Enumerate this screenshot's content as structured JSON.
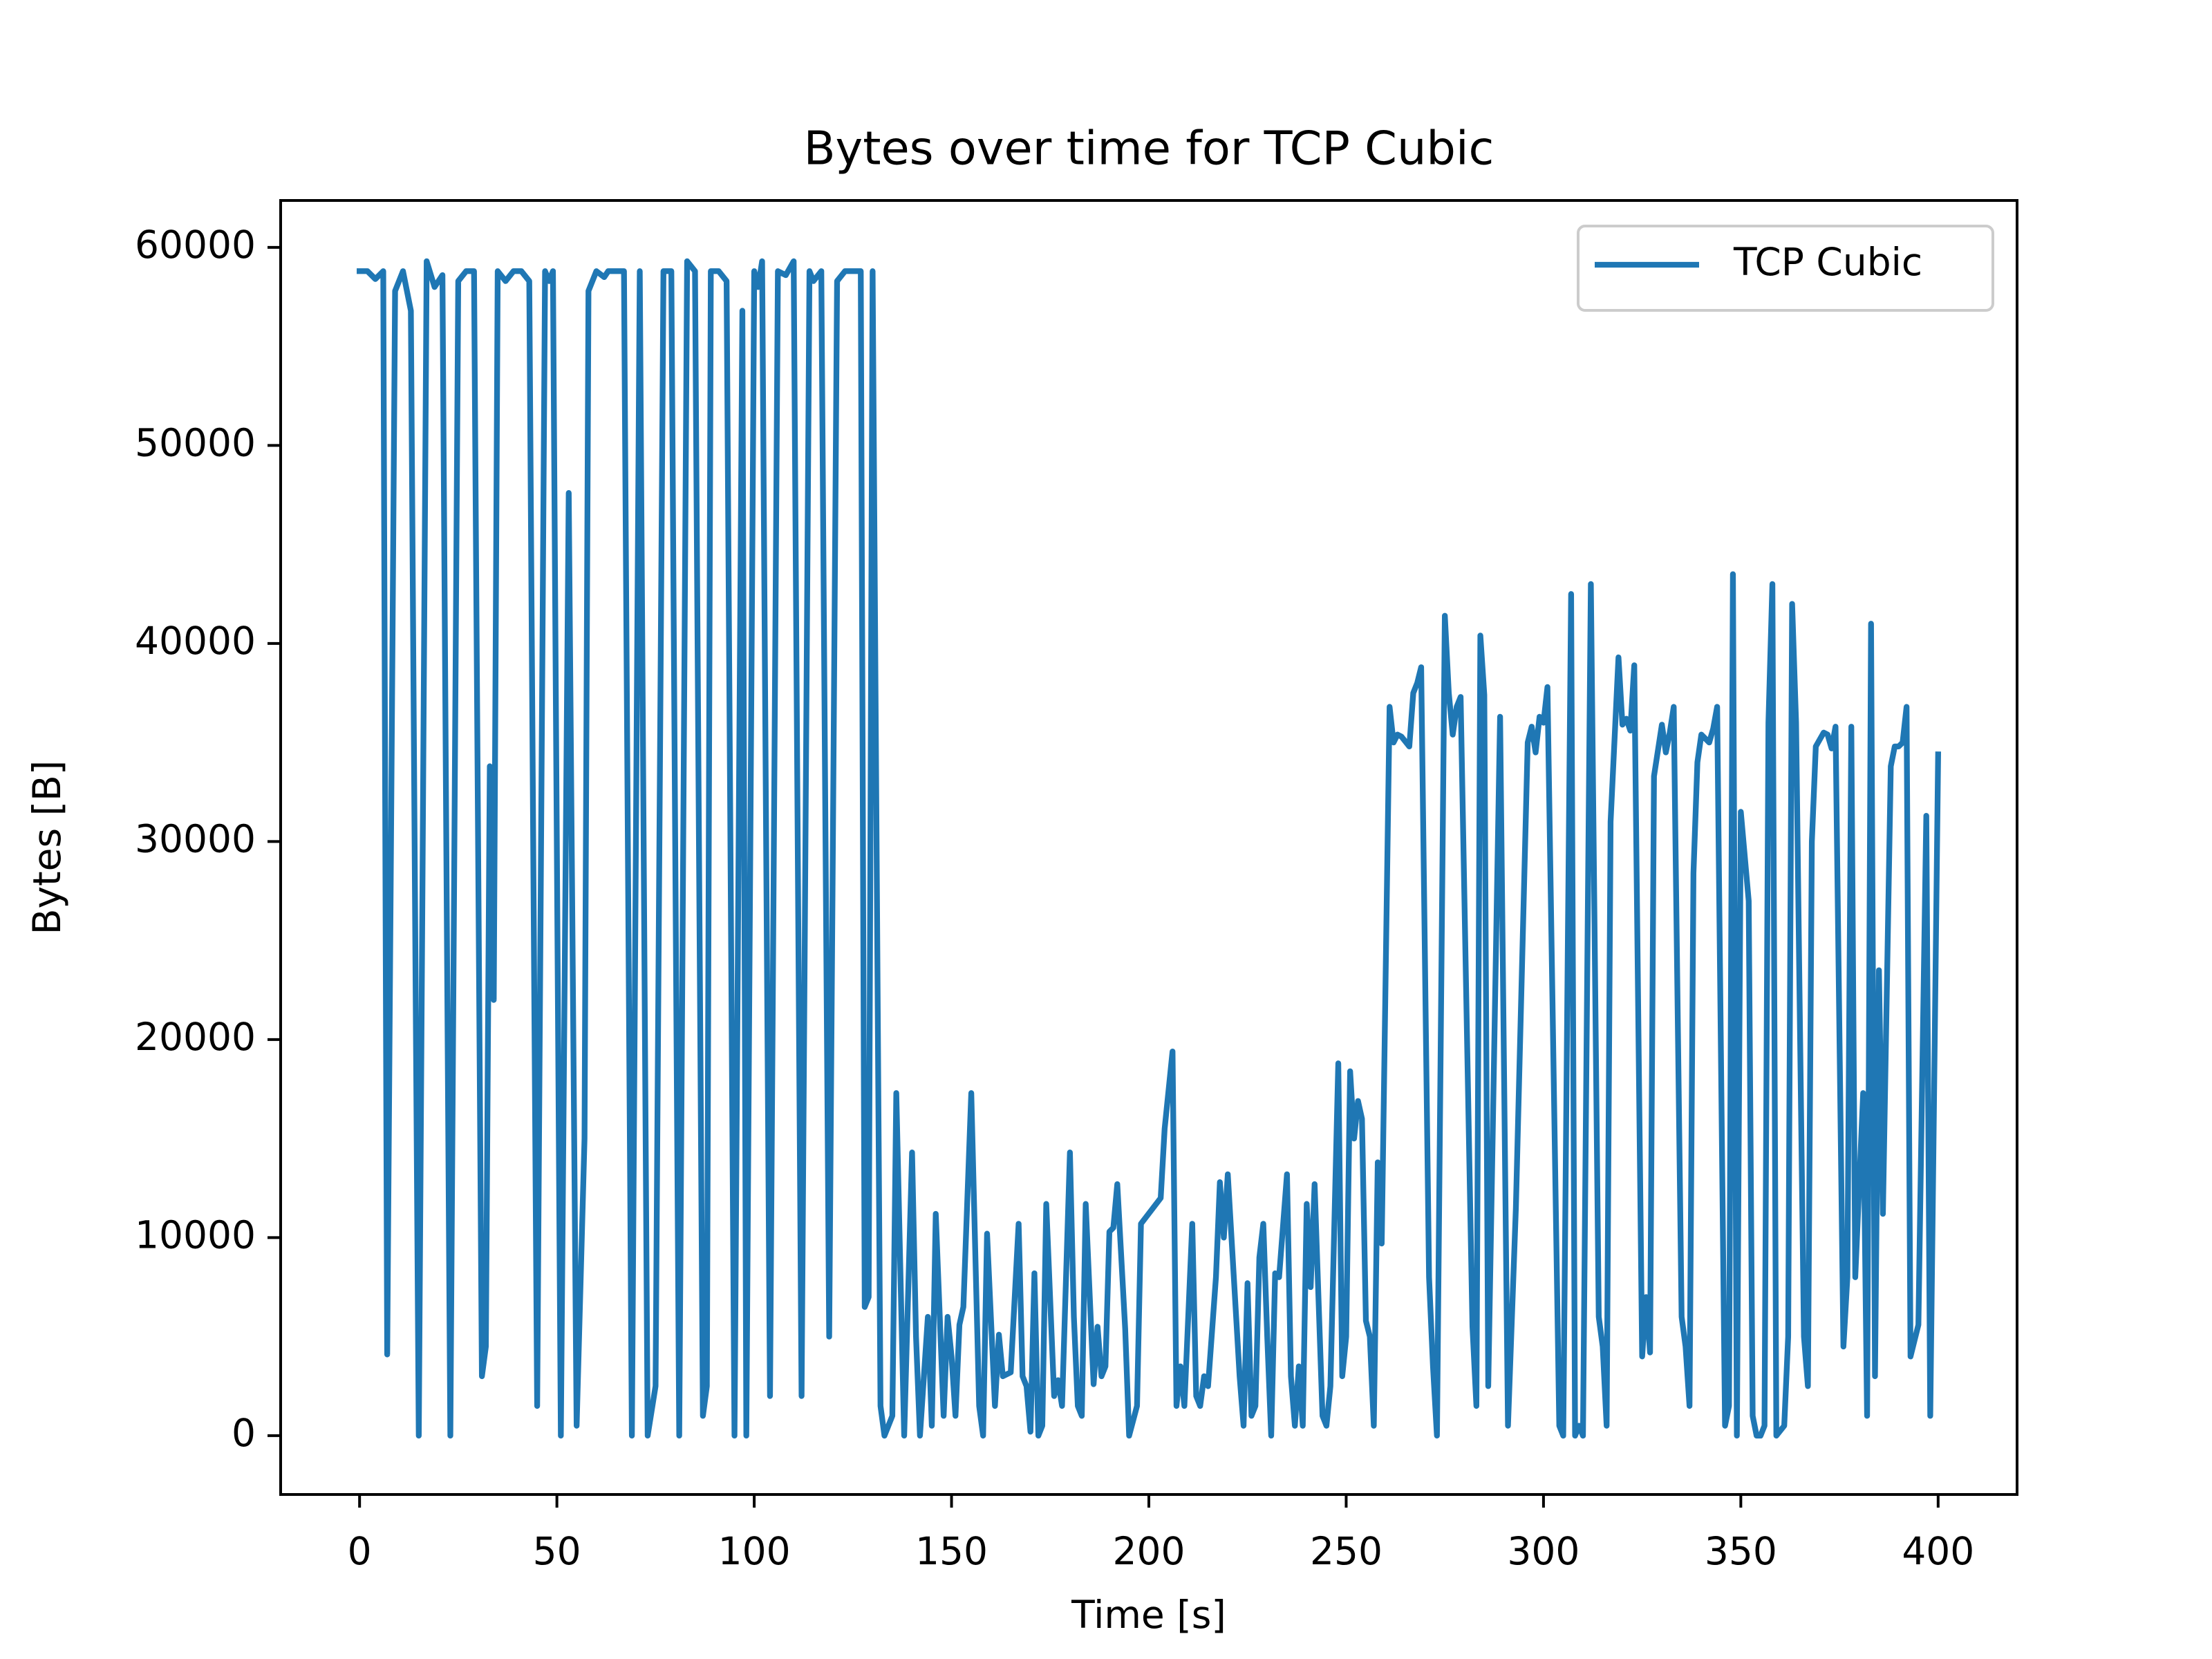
{
  "chart_data": {
    "type": "line",
    "title": "Bytes over time for TCP Cubic",
    "xlabel": "Time [s]",
    "ylabel": "Bytes [B]",
    "xlim": [
      -20,
      420
    ],
    "ylim": [
      -2970,
      62370
    ],
    "xticks": [
      0,
      50,
      100,
      150,
      200,
      250,
      300,
      350,
      400
    ],
    "yticks": [
      0,
      10000,
      20000,
      30000,
      40000,
      50000,
      60000
    ],
    "legend": "upper right",
    "x": [
      0,
      2,
      4,
      6,
      7,
      9,
      11,
      13,
      15,
      17,
      19,
      21,
      23,
      25,
      27,
      29,
      31,
      32,
      33,
      34,
      35,
      37,
      39,
      41,
      43,
      45,
      47,
      48,
      49,
      51,
      53,
      55,
      57,
      58,
      60,
      62,
      63,
      65,
      67,
      69,
      71,
      73,
      75,
      77,
      79,
      81,
      83,
      85,
      87,
      88,
      89,
      91,
      93,
      95,
      97,
      98,
      100,
      101,
      102,
      104,
      106,
      108,
      110,
      112,
      114,
      115,
      117,
      119,
      121,
      123,
      125,
      127,
      128,
      129,
      130,
      132,
      133,
      135,
      136,
      138,
      140,
      141,
      142,
      144,
      145,
      146,
      148,
      149,
      150,
      151,
      152,
      153,
      155,
      157,
      158,
      159,
      161,
      162,
      163,
      165,
      167,
      168,
      169,
      170,
      171,
      172,
      173,
      174,
      176,
      177,
      178,
      180,
      181,
      182,
      183,
      184,
      186,
      187,
      188,
      189,
      190,
      191,
      192,
      194,
      195,
      197,
      198,
      203,
      204,
      206,
      207,
      208,
      209,
      211,
      212,
      213,
      214,
      215,
      217,
      218,
      219,
      220,
      223,
      224,
      225,
      226,
      227,
      228,
      229,
      230,
      231,
      232,
      233,
      235,
      236,
      237,
      238,
      239,
      240,
      241,
      242,
      244,
      245,
      246,
      248,
      249,
      250,
      251,
      252,
      253,
      254,
      255,
      256,
      257,
      258,
      259,
      261,
      262,
      263,
      264,
      266,
      267,
      268,
      269,
      271,
      272,
      273,
      275,
      276,
      277,
      278,
      279,
      282,
      283,
      284,
      285,
      286,
      289,
      291,
      293,
      296,
      297,
      298,
      299,
      300,
      301,
      304,
      305,
      307,
      308,
      309,
      310,
      312,
      314,
      315,
      316,
      317,
      319,
      320,
      321,
      322,
      323,
      325,
      326,
      327,
      328,
      330,
      331,
      332,
      333,
      335,
      336,
      337,
      338,
      339,
      340,
      342,
      343,
      344,
      346,
      347,
      348,
      349,
      350,
      352,
      353,
      354,
      355,
      356,
      357,
      358,
      359,
      361,
      362,
      363,
      364,
      366,
      367,
      368,
      369,
      371,
      372,
      373,
      374,
      376,
      377,
      378,
      379,
      381,
      382,
      383,
      384,
      385,
      386,
      388,
      389,
      390,
      391,
      392,
      393,
      395,
      397,
      398,
      400
    ],
    "series": [
      {
        "name": "TCP Cubic",
        "color": "#1f77b4",
        "values": [
          58800,
          58800,
          58400,
          58800,
          4100,
          57800,
          58800,
          56800,
          0,
          59300,
          58000,
          58600,
          0,
          58300,
          58800,
          58800,
          3000,
          4500,
          33800,
          22000,
          58800,
          58300,
          58800,
          58800,
          58300,
          1500,
          58800,
          58300,
          58800,
          0,
          47600,
          500,
          15000,
          57800,
          58800,
          58500,
          58800,
          58800,
          58800,
          0,
          58800,
          0,
          2500,
          58800,
          58800,
          0,
          59300,
          58800,
          1000,
          2500,
          58800,
          58800,
          58300,
          0,
          56800,
          0,
          58800,
          58000,
          59300,
          2000,
          58800,
          58600,
          59300,
          2000,
          58800,
          58300,
          58800,
          5000,
          58300,
          58800,
          58800,
          58800,
          6500,
          7000,
          58800,
          1500,
          0,
          1000,
          17300,
          0,
          14300,
          5000,
          0,
          6000,
          500,
          11200,
          1000,
          6000,
          4000,
          1000,
          5600,
          6500,
          17300,
          1500,
          0,
          10200,
          1500,
          5100,
          3000,
          3200,
          10700,
          3000,
          2500,
          200,
          8200,
          0,
          500,
          11700,
          2000,
          2800,
          1500,
          14300,
          6000,
          1500,
          1000,
          11700,
          2600,
          5500,
          3000,
          3500,
          10300,
          10500,
          12700,
          5400,
          0,
          1500,
          10700,
          12000,
          15500,
          19400,
          1500,
          3500,
          1500,
          10700,
          2000,
          1500,
          3000,
          2500,
          8000,
          12800,
          10000,
          13200,
          3000,
          500,
          7700,
          1000,
          1500,
          9000,
          10700,
          5000,
          0,
          8200,
          8000,
          13200,
          3000,
          500,
          3500,
          500,
          11700,
          7500,
          12700,
          1000,
          500,
          2500,
          18800,
          3000,
          5000,
          18400,
          15000,
          16900,
          16000,
          5800,
          5000,
          500,
          13800,
          9700,
          36800,
          35000,
          35400,
          35300,
          34800,
          37500,
          38000,
          38800,
          8000,
          3500,
          0,
          41400,
          37500,
          35400,
          36800,
          37300,
          5500,
          1500,
          40400,
          37400,
          2500,
          36300,
          500,
          11500,
          35000,
          35800,
          34500,
          36300,
          36000,
          37800,
          500,
          0,
          42500,
          0,
          500,
          0,
          43000,
          6000,
          4500,
          500,
          31000,
          39300,
          35900,
          36200,
          35600,
          38900,
          4000,
          7000,
          4200,
          33300,
          35900,
          34500,
          35500,
          36800,
          6000,
          4500,
          1500,
          28400,
          34000,
          35400,
          35000,
          35700,
          36800,
          500,
          1500,
          43500,
          0,
          31500,
          27000,
          1000,
          0,
          0,
          500,
          36000,
          43000,
          0,
          500,
          5000,
          42000,
          36000,
          5000,
          2500,
          30000,
          34800,
          35500,
          35400,
          34700,
          35800,
          4500,
          8000,
          35800,
          8000,
          17300,
          1000,
          41000,
          3000,
          23500,
          11200,
          33800,
          34800,
          34800,
          35000,
          36800,
          4000,
          5600,
          31300,
          1000,
          34400
        ]
      }
    ]
  }
}
